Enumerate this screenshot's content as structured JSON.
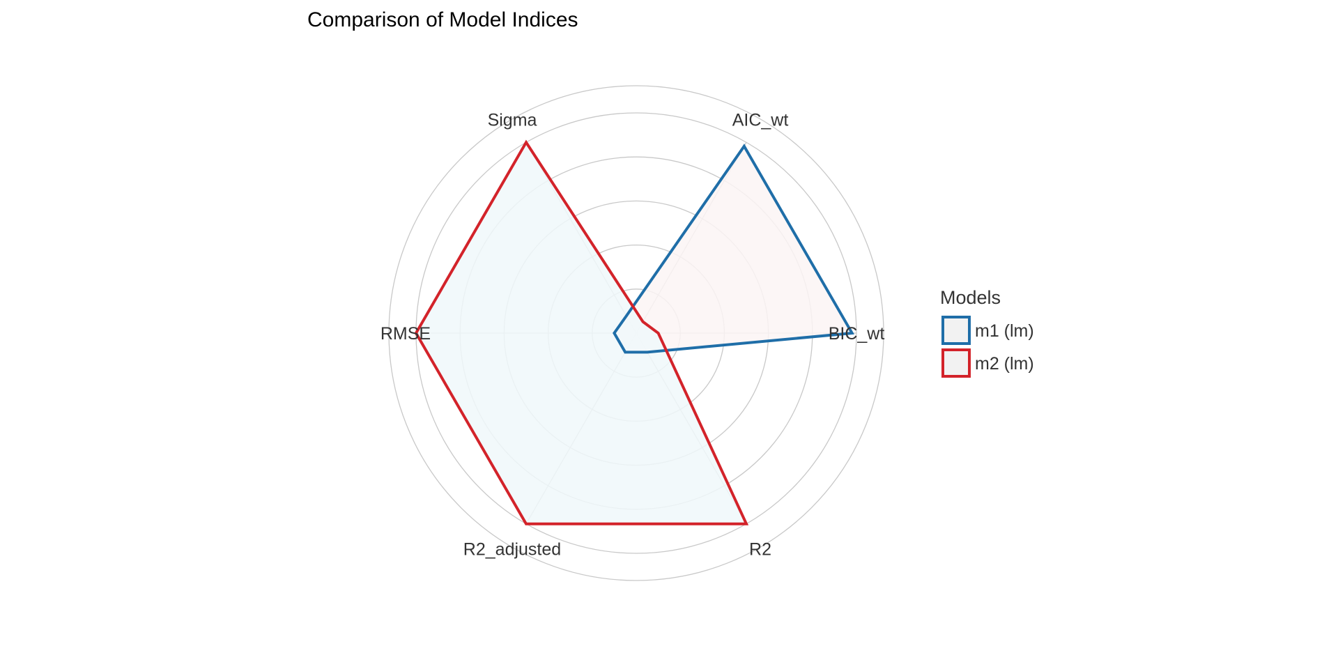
{
  "chart_data": {
    "type": "radar",
    "title": "Comparison of Model Indices",
    "axes": [
      "AIC_wt",
      "BIC_wt",
      "R2",
      "R2_adjusted",
      "RMSE",
      "Sigma"
    ],
    "rlim": [
      0,
      1
    ],
    "grid": true,
    "legend_title": "Models",
    "legend_position": "right",
    "series": [
      {
        "name": "m1 (lm)",
        "color": "#1F6EA8",
        "fill": "#FBF5F5",
        "values": [
          0.98,
          0.98,
          0.1,
          0.1,
          0.1,
          0.09
        ]
      },
      {
        "name": "m2 (lm)",
        "color": "#D3232A",
        "fill": "#F0F8FA",
        "values": [
          0.06,
          0.1,
          1.0,
          1.0,
          1.0,
          1.0
        ]
      }
    ]
  }
}
